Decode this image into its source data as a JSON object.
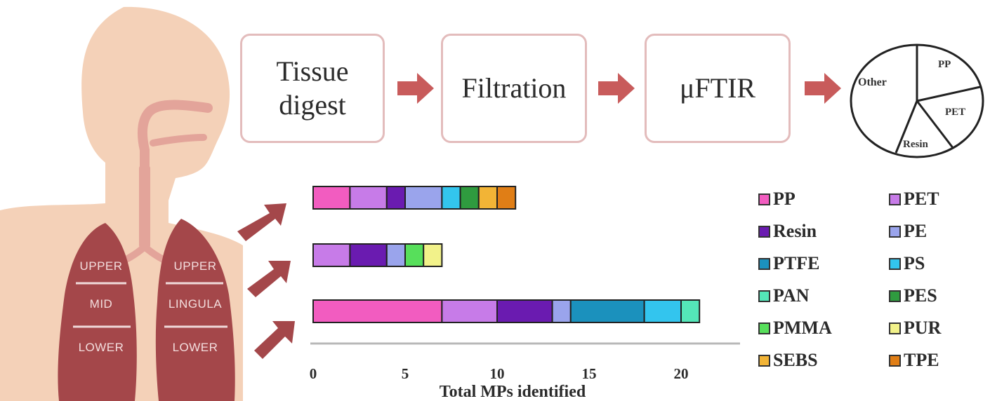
{
  "steps": [
    {
      "label": "Tissue\ndigest"
    },
    {
      "label": "Filtration"
    },
    {
      "label": "μFTIR"
    }
  ],
  "pie": {
    "labels": [
      "Other",
      "PP",
      "PET",
      "Resin"
    ]
  },
  "lungs": {
    "right": [
      "UPPER",
      "MID",
      "LOWER"
    ],
    "left": [
      "UPPER",
      "LINGULA",
      "LOWER"
    ]
  },
  "chart_data": {
    "type": "bar",
    "orientation": "horizontal",
    "stacked": true,
    "xlabel": "Total MPs identified",
    "xlim": [
      0,
      23
    ],
    "xticks": [
      0,
      5,
      10,
      15,
      20
    ],
    "categories": [
      "Upper",
      "Mid",
      "Lower"
    ],
    "series": [
      {
        "name": "PP",
        "color": "#f25cc0",
        "values": [
          2,
          0,
          7
        ]
      },
      {
        "name": "PET",
        "color": "#c77be8",
        "values": [
          2,
          2,
          3
        ]
      },
      {
        "name": "Resin",
        "color": "#6a1bb0",
        "values": [
          1,
          2,
          3
        ]
      },
      {
        "name": "PE",
        "color": "#9aa4ec",
        "values": [
          2,
          1,
          1
        ]
      },
      {
        "name": "PTFE",
        "color": "#1b91bd",
        "values": [
          0,
          0,
          4
        ]
      },
      {
        "name": "PS",
        "color": "#33c5ee",
        "values": [
          1,
          0,
          2
        ]
      },
      {
        "name": "PAN",
        "color": "#54e6b8",
        "values": [
          0,
          0,
          1
        ]
      },
      {
        "name": "PES",
        "color": "#2f9b3f",
        "values": [
          1,
          0,
          0
        ]
      },
      {
        "name": "PMMA",
        "color": "#57df5b",
        "values": [
          0,
          1,
          0
        ]
      },
      {
        "name": "PUR",
        "color": "#f2f28a",
        "values": [
          0,
          1,
          0
        ]
      },
      {
        "name": "SEBS",
        "color": "#f2b436",
        "values": [
          1,
          0,
          0
        ]
      },
      {
        "name": "TPE",
        "color": "#e07e16",
        "values": [
          1,
          0,
          0
        ]
      }
    ]
  },
  "colors": {
    "skin": "#f4d1b8",
    "airway": "#e3a49a",
    "lung": "#a4474a",
    "arrow": "#c85b5b",
    "box_border": "#e3bcbc"
  }
}
